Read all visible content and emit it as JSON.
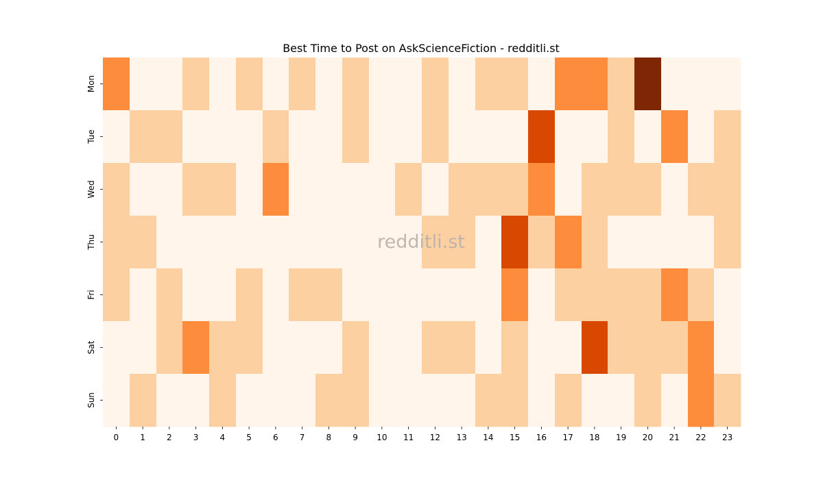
{
  "chart_data": {
    "type": "heatmap",
    "title": "Best Time to Post on AskScienceFiction - redditli.st",
    "xlabel": "",
    "ylabel": "",
    "x_categories": [
      "0",
      "1",
      "2",
      "3",
      "4",
      "5",
      "6",
      "7",
      "8",
      "9",
      "10",
      "11",
      "12",
      "13",
      "14",
      "15",
      "16",
      "17",
      "18",
      "19",
      "20",
      "21",
      "22",
      "23"
    ],
    "y_categories": [
      "Mon",
      "Tue",
      "Wed",
      "Thu",
      "Fri",
      "Sat",
      "Sun"
    ],
    "values": [
      [
        3,
        0,
        0,
        1,
        0,
        1,
        0,
        1,
        0,
        1,
        0,
        0,
        1,
        0,
        1,
        1,
        0,
        3,
        3,
        1,
        6,
        0,
        0,
        0
      ],
      [
        0,
        1,
        1,
        0,
        0,
        0,
        1,
        0,
        0,
        1,
        0,
        0,
        1,
        0,
        0,
        0,
        5,
        0,
        0,
        1,
        0,
        3,
        0,
        1
      ],
      [
        1,
        0,
        0,
        1,
        1,
        0,
        3,
        0,
        0,
        0,
        0,
        1,
        0,
        1,
        1,
        1,
        3,
        0,
        1,
        1,
        1,
        0,
        1,
        1
      ],
      [
        1,
        1,
        0,
        0,
        0,
        0,
        0,
        0,
        0,
        0,
        0,
        0,
        1,
        1,
        0,
        5,
        1,
        3,
        1,
        0,
        0,
        0,
        0,
        1
      ],
      [
        1,
        0,
        1,
        0,
        0,
        1,
        0,
        1,
        1,
        0,
        0,
        0,
        0,
        0,
        0,
        3,
        0,
        1,
        1,
        1,
        1,
        3,
        1,
        0
      ],
      [
        0,
        0,
        1,
        3,
        1,
        1,
        0,
        0,
        0,
        1,
        0,
        0,
        1,
        1,
        0,
        1,
        0,
        0,
        5,
        1,
        1,
        1,
        3,
        0
      ],
      [
        0,
        1,
        0,
        0,
        1,
        0,
        0,
        0,
        1,
        1,
        0,
        0,
        0,
        0,
        1,
        1,
        0,
        1,
        0,
        0,
        1,
        0,
        3,
        1
      ]
    ],
    "color_scale": [
      "#fff5eb",
      "#fdd0a2",
      "#fdb97d",
      "#fd8d3c",
      "#f16913",
      "#d94801",
      "#7f2704"
    ],
    "colormap": "Oranges",
    "watermark": "redditli.st"
  }
}
